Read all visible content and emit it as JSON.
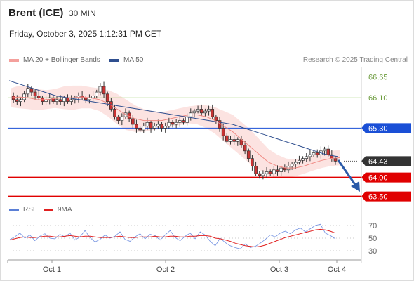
{
  "header": {
    "instrument": "Brent (ICE)",
    "timeframe": "30 MIN",
    "datetime": "Friday, October 3, 2025 1:12:31 PM CET"
  },
  "legend": {
    "items": [
      {
        "label": "MA 20 + Bollinger Bands",
        "color": "#f4a09c"
      },
      {
        "label": "MA 50",
        "color": "#2f4f8f"
      }
    ],
    "research": "Research © 2025 Trading Central"
  },
  "rsi_legend": {
    "items": [
      {
        "label": "RSI",
        "color": "#5b7fd6"
      },
      {
        "label": "9MA",
        "color": "#e02020"
      }
    ]
  },
  "colors": {
    "resistance_green": "#a7d47a",
    "pivot_blue": "#1a4fd6",
    "support_red": "#e00000",
    "current_price": "#333333",
    "arrow": "#2a5aa8",
    "candle_up": "#ffffff",
    "candle_down": "#c83232"
  },
  "chart_data": [
    {
      "type": "line",
      "name": "price",
      "x_ticks": [
        "Oct 1",
        "Oct 2",
        "Oct 3",
        "Oct 4"
      ],
      "ylim": [
        63.4,
        66.9
      ],
      "levels": [
        {
          "label": "66.65",
          "value": 66.65,
          "kind": "resistance"
        },
        {
          "label": "66.10",
          "value": 66.1,
          "kind": "resistance"
        },
        {
          "label": "65.30",
          "value": 65.3,
          "kind": "pivot"
        },
        {
          "label": "64.43",
          "value": 64.43,
          "kind": "current"
        },
        {
          "label": "64.00",
          "value": 64.0,
          "kind": "support"
        },
        {
          "label": "63.50",
          "value": 63.5,
          "kind": "support"
        }
      ],
      "close_path": [
        66.15,
        66.05,
        66.0,
        66.05,
        66.2,
        66.35,
        66.25,
        66.15,
        66.1,
        66.0,
        66.05,
        66.1,
        66.0,
        66.05,
        66.0,
        66.1,
        66.0,
        66.05,
        66.1,
        66.15,
        66.1,
        66.05,
        66.1,
        66.15,
        66.25,
        66.4,
        66.2,
        66.0,
        65.8,
        65.6,
        65.5,
        65.6,
        65.7,
        65.55,
        65.4,
        65.3,
        65.25,
        65.35,
        65.45,
        65.3,
        65.35,
        65.4,
        65.3,
        65.35,
        65.45,
        65.4,
        65.45,
        65.5,
        65.45,
        65.6,
        65.7,
        65.75,
        65.8,
        65.7,
        65.75,
        65.8,
        65.6,
        65.5,
        65.3,
        65.1,
        64.95,
        65.0,
        64.95,
        65.0,
        64.85,
        64.7,
        64.5,
        64.3,
        64.1,
        64.05,
        64.1,
        64.15,
        64.1,
        64.2,
        64.15,
        64.25,
        64.2,
        64.3,
        64.35,
        64.4,
        64.45,
        64.5,
        64.55,
        64.6,
        64.65,
        64.6,
        64.7,
        64.75,
        64.6,
        64.5,
        64.43
      ],
      "ma20_path": [
        66.1,
        66.12,
        66.1,
        66.05,
        66.05,
        66.08,
        66.1,
        66.1,
        66.12,
        66.1,
        66.05,
        65.95,
        65.8,
        65.65,
        65.55,
        65.5,
        65.5,
        65.5,
        65.55,
        65.6,
        65.65,
        65.65,
        65.6,
        65.5,
        65.35,
        65.2,
        65.0,
        64.8,
        64.6,
        64.4,
        64.3,
        64.25,
        64.25,
        64.3,
        64.38,
        64.45,
        64.5,
        64.52
      ],
      "ma50_path": [
        66.55,
        66.45,
        66.35,
        66.25,
        66.15,
        66.1,
        66.05,
        66.0,
        65.95,
        65.9,
        65.85,
        65.8,
        65.75,
        65.7,
        65.65,
        65.6,
        65.55,
        65.5,
        65.45,
        65.4,
        65.3,
        65.2,
        65.1,
        65.0,
        64.9,
        64.8,
        64.7,
        64.6,
        64.55
      ]
    },
    {
      "type": "line",
      "name": "RSI",
      "y_ticks": [
        70,
        50,
        30
      ],
      "ylim": [
        20,
        80
      ],
      "series": [
        {
          "name": "RSI",
          "values": [
            48,
            52,
            58,
            50,
            55,
            46,
            53,
            57,
            50,
            49,
            56,
            52,
            58,
            47,
            52,
            62,
            51,
            44,
            48,
            55,
            50,
            53,
            60,
            48,
            45,
            52,
            57,
            49,
            56,
            54,
            47,
            55,
            62,
            51,
            46,
            53,
            58,
            49,
            60,
            55,
            45,
            38,
            50,
            43,
            38,
            35,
            33,
            41,
            35,
            37,
            42,
            48,
            55,
            52,
            58,
            61,
            57,
            63,
            66,
            60,
            65,
            70,
            72,
            58,
            54,
            49
          ]
        },
        {
          "name": "9MA",
          "values": [
            47,
            49,
            51,
            52,
            51,
            51,
            52,
            53,
            53,
            52,
            52,
            53,
            54,
            53,
            52,
            53,
            53,
            52,
            51,
            51,
            51,
            52,
            53,
            52,
            51,
            51,
            52,
            52,
            52,
            53,
            52,
            52,
            53,
            53,
            52,
            52,
            53,
            53,
            54,
            54,
            53,
            50,
            49,
            47,
            45,
            42,
            40,
            38,
            37,
            36,
            37,
            39,
            42,
            45,
            48,
            51,
            53,
            55,
            57,
            59,
            61,
            63,
            64,
            63,
            61,
            58
          ]
        }
      ]
    }
  ]
}
